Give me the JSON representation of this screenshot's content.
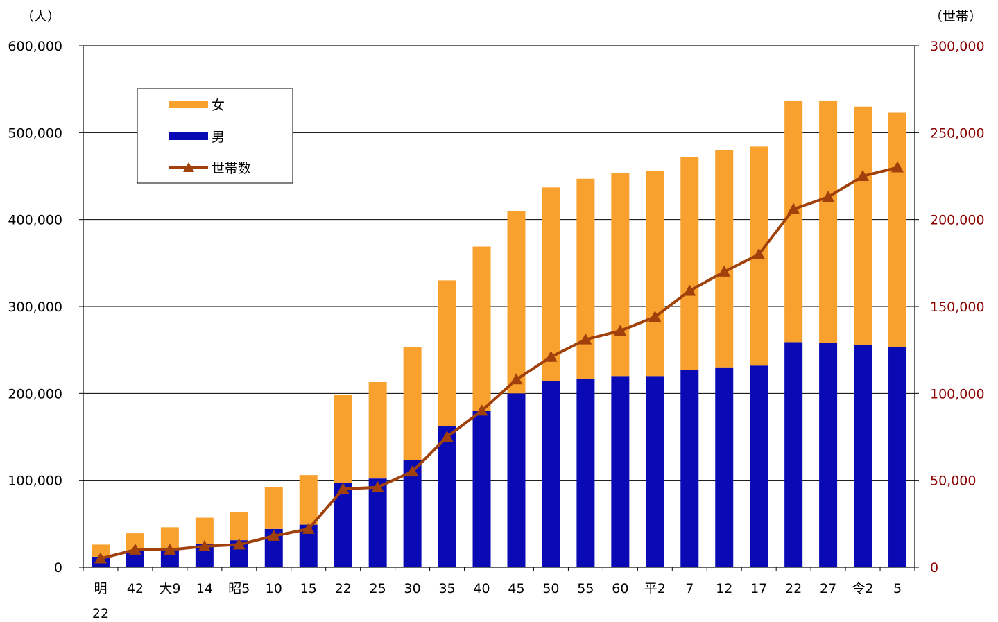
{
  "chart_data": {
    "type": "bar",
    "stacked": true,
    "title": "",
    "y_left_unit": "（人）",
    "y_right_unit": "（世帯）",
    "y_left_ticks": [
      "0",
      "100,000",
      "200,000",
      "300,000",
      "400,000",
      "500,000",
      "600,000"
    ],
    "y_right_ticks": [
      "0",
      "50,000",
      "100,000",
      "150,000",
      "200,000",
      "250,000",
      "300,000"
    ],
    "ylim_left": [
      0,
      600000
    ],
    "ylim_right": [
      0,
      300000
    ],
    "categories": [
      [
        "明",
        "22"
      ],
      [
        "42"
      ],
      [
        "大9"
      ],
      [
        "14"
      ],
      [
        "昭5"
      ],
      [
        "10"
      ],
      [
        "15"
      ],
      [
        "22"
      ],
      [
        "25"
      ],
      [
        "30"
      ],
      [
        "35"
      ],
      [
        "40"
      ],
      [
        "45"
      ],
      [
        "50"
      ],
      [
        "55"
      ],
      [
        "60"
      ],
      [
        "平2"
      ],
      [
        "7"
      ],
      [
        "12"
      ],
      [
        "17"
      ],
      [
        "22"
      ],
      [
        "27"
      ],
      [
        "令2"
      ],
      [
        "5"
      ]
    ],
    "series": [
      {
        "name": "男",
        "color": "#0a0ab4",
        "axis": "left",
        "values": [
          12000,
          19000,
          22000,
          27000,
          31000,
          44000,
          49000,
          97000,
          102000,
          123000,
          162000,
          180000,
          200000,
          214000,
          217000,
          220000,
          220000,
          227000,
          230000,
          232000,
          259000,
          258000,
          256000,
          253000
        ]
      },
      {
        "name": "女",
        "color": "#f9a12e",
        "axis": "left",
        "values": [
          14000,
          20000,
          24000,
          30000,
          32000,
          48000,
          57000,
          101000,
          111000,
          130000,
          168000,
          189000,
          210000,
          223000,
          230000,
          234000,
          236000,
          245000,
          250000,
          252000,
          278000,
          279000,
          274000,
          270000
        ]
      },
      {
        "name": "世帯数",
        "color": "#a0400b",
        "axis": "right",
        "type": "line",
        "marker": "triangle",
        "values": [
          5000,
          10000,
          10000,
          12000,
          13000,
          18000,
          22000,
          45000,
          46000,
          55000,
          75000,
          90000,
          108000,
          121000,
          131000,
          136000,
          144000,
          159000,
          170000,
          180000,
          206000,
          213000,
          225000,
          230000
        ]
      }
    ],
    "legend_position": "top-left",
    "legend": [
      "女",
      "男",
      "世帯数"
    ],
    "grid": "horizontal",
    "colors": {
      "male": "#0a0ab4",
      "female": "#f9a12e",
      "households": "#a0400b",
      "right_axis_text": "#8b0000"
    }
  }
}
